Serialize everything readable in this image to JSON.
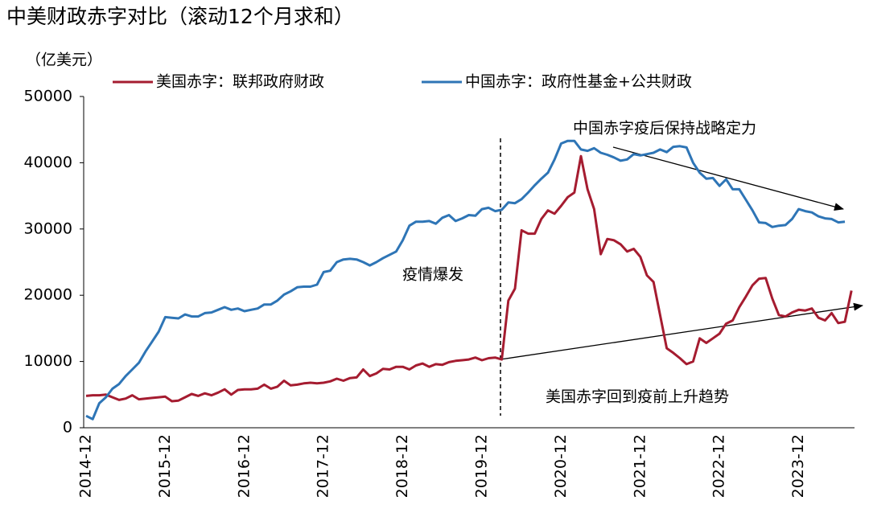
{
  "chart_data": {
    "type": "line",
    "title": "中美财政赤字对比（滚动12个月求和）",
    "ylabel": "（亿美元）",
    "categories": [
      "2014-12",
      null,
      null,
      null,
      null,
      null,
      null,
      null,
      null,
      null,
      null,
      null,
      "2015-12",
      null,
      null,
      null,
      null,
      null,
      null,
      null,
      null,
      null,
      null,
      null,
      "2016-12",
      null,
      null,
      null,
      null,
      null,
      null,
      null,
      null,
      null,
      null,
      null,
      "2017-12",
      null,
      null,
      null,
      null,
      null,
      null,
      null,
      null,
      null,
      null,
      null,
      "2018-12",
      null,
      null,
      null,
      null,
      null,
      null,
      null,
      null,
      null,
      null,
      null,
      "2019-12",
      null,
      null,
      null,
      null,
      null,
      null,
      null,
      null,
      null,
      null,
      null,
      "2020-12",
      null,
      null,
      null,
      null,
      null,
      null,
      null,
      null,
      null,
      null,
      null,
      "2021-12",
      null,
      null,
      null,
      null,
      null,
      null,
      null,
      null,
      null,
      null,
      null,
      "2022-12",
      null,
      null,
      null,
      null,
      null,
      null,
      null,
      null,
      null,
      null,
      null,
      "2023-12",
      null,
      null,
      null,
      null,
      null,
      null,
      null,
      null
    ],
    "series": [
      {
        "name": "美国赤字：联邦政府财政",
        "color": "#a51c30",
        "values": [
          4800,
          4900,
          4900,
          5000,
          4600,
          4200,
          4400,
          4900,
          4300,
          4400,
          4500,
          4600,
          4700,
          4000,
          4100,
          4600,
          5100,
          4800,
          5200,
          4900,
          5300,
          5800,
          5000,
          5700,
          5800,
          5800,
          5900,
          6500,
          5900,
          6200,
          7100,
          6400,
          6500,
          6700,
          6800,
          6700,
          6800,
          7000,
          7400,
          7100,
          7500,
          7600,
          8800,
          7800,
          8200,
          8900,
          8800,
          9200,
          9200,
          8800,
          9400,
          9700,
          9200,
          9600,
          9500,
          9900,
          10100,
          10200,
          10300,
          10600,
          10200,
          10500,
          10600,
          10300,
          19200,
          21000,
          29800,
          29300,
          29300,
          31500,
          32800,
          32300,
          33500,
          34800,
          35500,
          41000,
          36000,
          33000,
          26200,
          28500,
          28300,
          27700,
          26600,
          27000,
          25800,
          23000,
          22000,
          17000,
          12000,
          11300,
          10500,
          9600,
          10000,
          13500,
          12800,
          13500,
          14200,
          15700,
          16200,
          18200,
          19800,
          21500,
          22500,
          22600,
          19500,
          17000,
          16800,
          17400,
          17800,
          17700,
          18000,
          16600,
          16200,
          17300,
          15800,
          16000,
          20700
        ]
      },
      {
        "name": "中国赤字：政府性基金+公共财政",
        "color": "#2e75b6",
        "values": [
          1800,
          1300,
          3700,
          4600,
          5900,
          6600,
          7800,
          8800,
          9800,
          11500,
          13000,
          14500,
          16700,
          16600,
          16500,
          17100,
          16800,
          16800,
          17300,
          17400,
          17800,
          18200,
          17800,
          18000,
          17600,
          17800,
          18000,
          18600,
          18600,
          19200,
          20100,
          20600,
          21200,
          21300,
          21300,
          21600,
          23500,
          23700,
          25000,
          25400,
          25500,
          25400,
          25000,
          24500,
          25000,
          25600,
          26100,
          26600,
          28300,
          30500,
          31100,
          31100,
          31200,
          30800,
          31700,
          32100,
          31200,
          31600,
          32100,
          32000,
          33000,
          33200,
          32700,
          32900,
          34000,
          33900,
          34500,
          35500,
          36600,
          37600,
          38500,
          40500,
          42900,
          43300,
          43300,
          42000,
          41800,
          42200,
          41500,
          41200,
          40800,
          40300,
          40500,
          41300,
          41100,
          41300,
          41500,
          42000,
          41600,
          42400,
          42500,
          42300,
          40000,
          38500,
          37600,
          37700,
          36500,
          37500,
          36000,
          36000,
          34400,
          32800,
          31000,
          30900,
          30300,
          30500,
          30600,
          31500,
          33000,
          32700,
          32500,
          31900,
          31600,
          31500,
          31000,
          31100,
          null
        ]
      }
    ],
    "ylim": [
      0,
      50000
    ],
    "yticks": [
      0,
      10000,
      20000,
      30000,
      40000,
      50000
    ],
    "annotations": [
      "中国赤字疫后保持战略定力",
      "美国赤字回到疫前上升趋势",
      "疫情爆发"
    ]
  }
}
